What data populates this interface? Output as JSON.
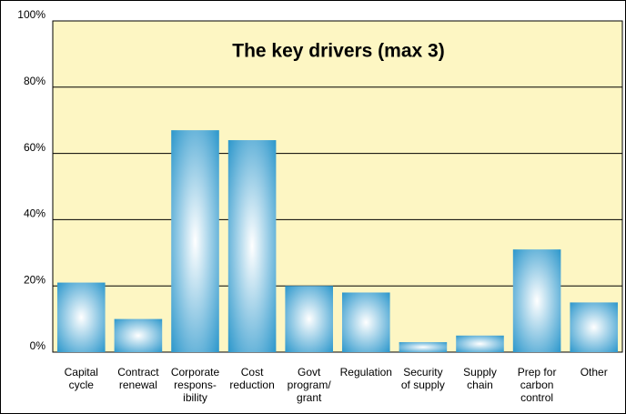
{
  "chart_data": {
    "type": "bar",
    "title": "The key drivers (max 3)",
    "categories": [
      [
        "Capital",
        "cycle"
      ],
      [
        "Contract",
        "renewal"
      ],
      [
        "Corporate",
        "respons-",
        "ibility"
      ],
      [
        "Cost",
        "reduction"
      ],
      [
        "Govt",
        "program/",
        "grant"
      ],
      [
        "Regulation"
      ],
      [
        "Security",
        "of supply"
      ],
      [
        "Supply",
        "chain"
      ],
      [
        "Prep for",
        "carbon",
        "control"
      ],
      [
        "Other"
      ]
    ],
    "values": [
      21,
      10,
      67,
      64,
      20,
      18,
      3,
      5,
      31,
      15
    ],
    "color": "#1e90c8",
    "ylim": [
      0,
      100
    ],
    "yticks": [
      {
        "value": 0,
        "label": "0%"
      },
      {
        "value": 20,
        "label": "20%"
      },
      {
        "value": 40,
        "label": "40%"
      },
      {
        "value": 60,
        "label": "60%"
      },
      {
        "value": 80,
        "label": "80%"
      },
      {
        "value": 100,
        "label": "100%"
      }
    ],
    "grid": true
  }
}
